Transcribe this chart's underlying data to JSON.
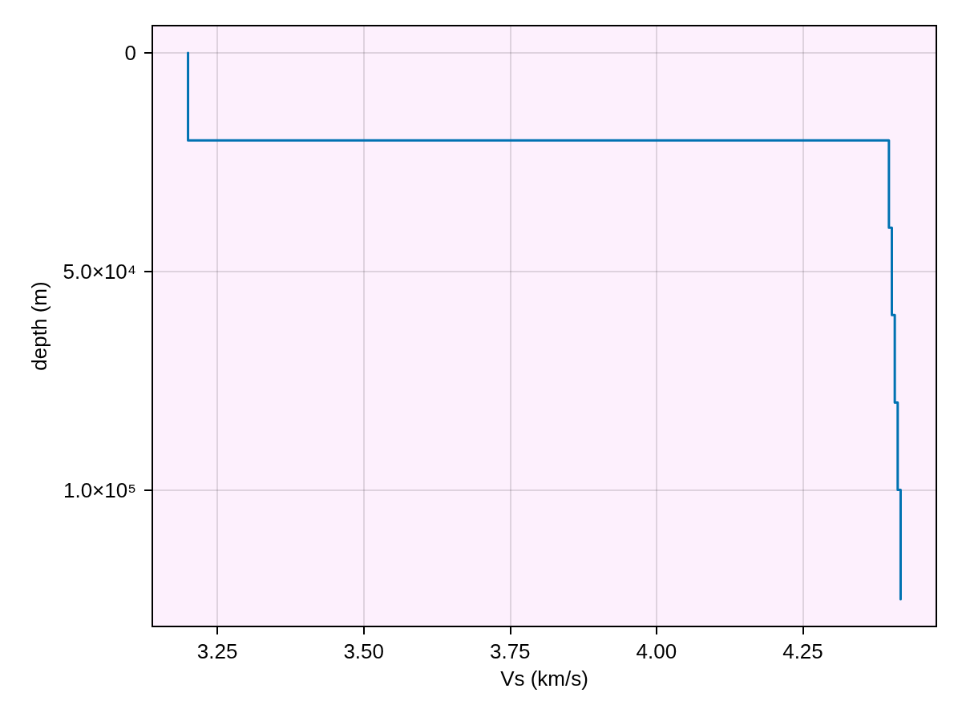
{
  "chart_data": {
    "type": "line",
    "xlabel": "Vs (km/s)",
    "ylabel": "depth (m)",
    "x": [
      3.2,
      3.2,
      4.397,
      4.397,
      4.402,
      4.402,
      4.407,
      4.407,
      4.412,
      4.412,
      4.417,
      4.417
    ],
    "series": [
      {
        "color": "#0072b2",
        "values": [
          0,
          20000,
          20000,
          40000,
          40000,
          60000,
          60000,
          80000,
          80000,
          100000,
          100000,
          125000
        ]
      }
    ],
    "xlim": [
      3.139,
      4.478
    ],
    "ylim": [
      131250,
      -6250
    ],
    "xticks": [
      3.25,
      {
        "value": 3.5,
        "label": "3.50"
      },
      3.75,
      {
        "value": 4,
        "label": "4.00"
      },
      4.25
    ],
    "yticks": [
      0,
      {
        "value": 50000,
        "label": "5.0×10⁴"
      },
      {
        "value": 100000,
        "label": "1.0×10⁵"
      }
    ],
    "grid": true,
    "marker": "none",
    "line_style": "solid"
  }
}
